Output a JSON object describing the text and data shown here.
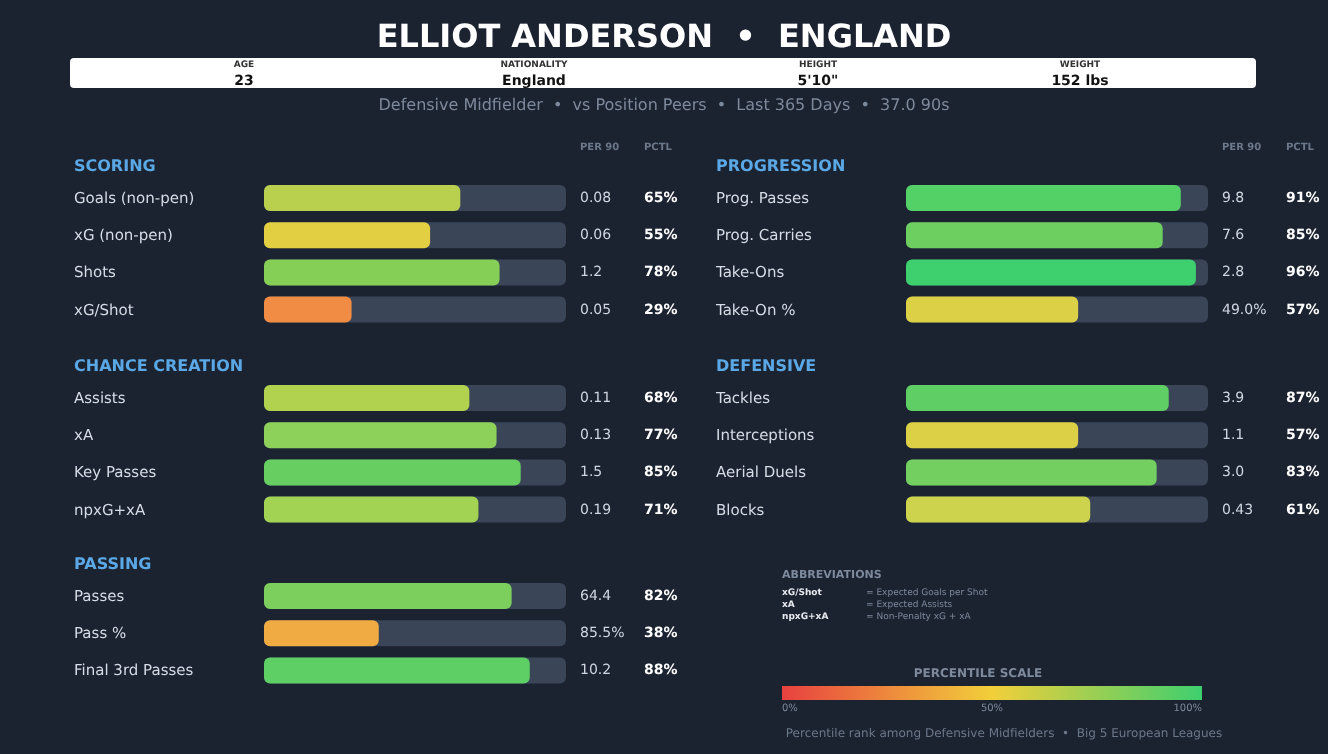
{
  "chart_data": [
    {
      "type": "other",
      "title": "ELLIOT ANDERSON  •  ENGLAND",
      "subtitle": "Defensive Midfielder  •  vs Position Peers  •  Last 365 Days  •  37.0 90s",
      "annotations": [
        "AGE",
        "23",
        "NATIONALITY",
        "England",
        "HEIGHT",
        "5'10\"",
        "WEIGHT",
        "152 lbs"
      ]
    },
    {
      "type": "bar",
      "orientation": "horizontal",
      "title": "SCORING",
      "categories": [
        "Goals (non-pen)",
        "xG (non-pen)",
        "Shots",
        "xG/Shot"
      ],
      "values": [
        65,
        55,
        78,
        29
      ],
      "colors": [
        "#b9d04f",
        "#e3d042",
        "#86cf57",
        "#f08c44"
      ],
      "xlim": [
        0,
        100
      ],
      "tick_labels": "y",
      "value_labels": [
        "65%",
        "55%",
        "78%",
        "29%"
      ],
      "annotations": [
        "PER 90",
        "PCTL",
        "0.08",
        "0.06",
        "1.2",
        "0.05"
      ]
    },
    {
      "type": "bar",
      "orientation": "horizontal",
      "title": "CHANCE CREATION",
      "categories": [
        "Assists",
        "xA",
        "Key Passes",
        "npxG+xA"
      ],
      "values": [
        68,
        77,
        85,
        71
      ],
      "colors": [
        "#b1d24f",
        "#8dd05a",
        "#67cf62",
        "#a3d353"
      ],
      "xlim": [
        0,
        100
      ],
      "tick_labels": "y",
      "value_labels": [
        "68%",
        "77%",
        "85%",
        "71%"
      ],
      "annotations": [
        "0.11",
        "0.13",
        "1.5",
        "0.19"
      ]
    },
    {
      "type": "bar",
      "orientation": "horizontal",
      "title": "PASSING",
      "categories": [
        "Passes",
        "Pass %",
        "Final 3rd Passes"
      ],
      "values": [
        82,
        38,
        88
      ],
      "colors": [
        "#7ccf5c",
        "#f0ac42",
        "#5dcf64"
      ],
      "xlim": [
        0,
        100
      ],
      "tick_labels": "y",
      "value_labels": [
        "82%",
        "38%",
        "88%"
      ],
      "annotations": [
        "64.4",
        "85.5%",
        "10.2"
      ]
    },
    {
      "type": "bar",
      "orientation": "horizontal",
      "title": "PROGRESSION",
      "categories": [
        "Prog. Passes",
        "Prog. Carries",
        "Take-Ons",
        "Take-On %"
      ],
      "values": [
        91,
        85,
        96,
        57
      ],
      "colors": [
        "#53d066",
        "#6dcf60",
        "#3ecf6e",
        "#dcd146"
      ],
      "xlim": [
        0,
        100
      ],
      "tick_labels": "y",
      "value_labels": [
        "91%",
        "85%",
        "96%",
        "57%"
      ],
      "annotations": [
        "PER 90",
        "PCTL",
        "9.8",
        "7.6",
        "2.8",
        "49.0%"
      ]
    },
    {
      "type": "bar",
      "orientation": "horizontal",
      "title": "DEFENSIVE",
      "categories": [
        "Tackles",
        "Interceptions",
        "Aerial Duels",
        "Blocks"
      ],
      "values": [
        87,
        57,
        83,
        61
      ],
      "colors": [
        "#5fce64",
        "#dcd146",
        "#73cf5f",
        "#cdd34d"
      ],
      "xlim": [
        0,
        100
      ],
      "tick_labels": "y",
      "value_labels": [
        "87%",
        "57%",
        "83%",
        "61%"
      ],
      "annotations": [
        "3.9",
        "1.1",
        "3.0",
        "0.43"
      ]
    },
    {
      "type": "other",
      "title": "ABBREVIATIONS",
      "annotations": [
        "xG/Shot",
        "= Expected Goals per Shot",
        "xA",
        "= Expected Assists",
        "npxG+xA",
        "= Non-Penalty xG + xA"
      ]
    },
    {
      "type": "other",
      "title": "PERCENTILE SCALE",
      "colors": [
        "#e8413f",
        "#f2cf3a",
        "#3ecf6e"
      ],
      "annotations": [
        "0%",
        "50%",
        "100%"
      ]
    },
    {
      "type": "other",
      "annotations": [
        "Percentile rank among Defensive Midfielders  •  Big 5 European Leagues"
      ]
    }
  ]
}
